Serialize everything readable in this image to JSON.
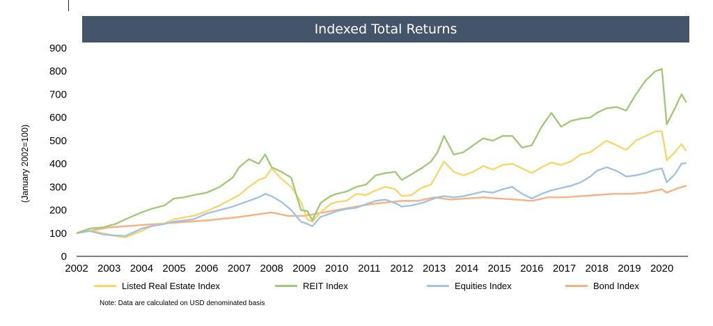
{
  "chart_data": {
    "type": "line",
    "title": "Indexed Total Returns",
    "ylabel": "(January 2002=100)",
    "xlabel": "",
    "ylim": [
      0,
      900
    ],
    "xlim": [
      2002,
      2020.8
    ],
    "y_ticks": [
      0,
      100,
      200,
      300,
      400,
      500,
      600,
      700,
      800,
      900
    ],
    "x_ticks": [
      2002,
      2003,
      2004,
      2005,
      2006,
      2007,
      2008,
      2009,
      2010,
      2011,
      2012,
      2013,
      2014,
      2015,
      2016,
      2017,
      2018,
      2019,
      2020
    ],
    "grid": false,
    "legend_position": "bottom",
    "note": "Note: Data are calculated on USD denominated basis",
    "series": [
      {
        "name": "Listed Real Estate Index",
        "color": "#f9d66c",
        "x": [
          2002,
          2002.4,
          2002.8,
          2003.2,
          2003.5,
          2004.0,
          2004.3,
          2004.7,
          2005.0,
          2005.3,
          2005.6,
          2006.0,
          2006.4,
          2006.8,
          2007.0,
          2007.3,
          2007.6,
          2007.8,
          2008.0,
          2008.3,
          2008.6,
          2008.9,
          2009.1,
          2009.25,
          2009.5,
          2009.8,
          2010.0,
          2010.3,
          2010.6,
          2010.9,
          2011.2,
          2011.5,
          2011.8,
          2012.0,
          2012.3,
          2012.6,
          2012.9,
          2013.1,
          2013.3,
          2013.6,
          2013.9,
          2014.2,
          2014.5,
          2014.8,
          2015.1,
          2015.4,
          2015.7,
          2016.0,
          2016.3,
          2016.6,
          2016.9,
          2017.2,
          2017.5,
          2017.8,
          2018.0,
          2018.3,
          2018.6,
          2018.9,
          2019.2,
          2019.5,
          2019.8,
          2020.0,
          2020.15,
          2020.4,
          2020.6,
          2020.75
        ],
        "y": [
          100,
          112,
          100,
          88,
          82,
          110,
          130,
          143,
          160,
          168,
          175,
          195,
          220,
          250,
          265,
          300,
          330,
          340,
          380,
          335,
          300,
          235,
          160,
          150,
          190,
          225,
          235,
          240,
          270,
          265,
          285,
          300,
          290,
          260,
          265,
          295,
          310,
          360,
          410,
          365,
          350,
          365,
          390,
          375,
          395,
          400,
          380,
          360,
          385,
          405,
          395,
          410,
          440,
          450,
          470,
          500,
          480,
          460,
          500,
          520,
          540,
          540,
          415,
          450,
          485,
          455
        ]
      },
      {
        "name": "REIT Index",
        "color": "#a2c97a",
        "x": [
          2002,
          2002.4,
          2002.8,
          2003.2,
          2003.5,
          2004.0,
          2004.3,
          2004.7,
          2005.0,
          2005.3,
          2005.6,
          2006.0,
          2006.4,
          2006.8,
          2007.0,
          2007.3,
          2007.6,
          2007.8,
          2008.0,
          2008.3,
          2008.6,
          2008.9,
          2009.1,
          2009.25,
          2009.5,
          2009.8,
          2010.0,
          2010.3,
          2010.6,
          2010.9,
          2011.2,
          2011.5,
          2011.8,
          2012.0,
          2012.3,
          2012.6,
          2012.9,
          2013.1,
          2013.3,
          2013.6,
          2013.9,
          2014.2,
          2014.5,
          2014.8,
          2015.1,
          2015.4,
          2015.7,
          2016.0,
          2016.3,
          2016.6,
          2016.9,
          2017.2,
          2017.5,
          2017.8,
          2018.0,
          2018.3,
          2018.6,
          2018.9,
          2019.2,
          2019.5,
          2019.8,
          2020.0,
          2020.15,
          2020.4,
          2020.6,
          2020.75
        ],
        "y": [
          100,
          120,
          125,
          140,
          160,
          190,
          205,
          220,
          250,
          255,
          265,
          275,
          300,
          340,
          385,
          420,
          400,
          440,
          385,
          365,
          340,
          200,
          195,
          155,
          230,
          260,
          270,
          280,
          300,
          310,
          350,
          360,
          365,
          330,
          355,
          380,
          410,
          450,
          520,
          440,
          450,
          480,
          510,
          500,
          520,
          520,
          470,
          480,
          560,
          620,
          560,
          585,
          595,
          600,
          620,
          640,
          645,
          630,
          700,
          760,
          800,
          810,
          570,
          640,
          700,
          665
        ]
      },
      {
        "name": "Equities Index",
        "color": "#a3c1e0",
        "x": [
          2002,
          2002.4,
          2002.8,
          2003.2,
          2003.5,
          2004.0,
          2004.3,
          2004.7,
          2005.0,
          2005.3,
          2005.6,
          2006.0,
          2006.4,
          2006.8,
          2007.0,
          2007.3,
          2007.6,
          2007.8,
          2008.0,
          2008.3,
          2008.6,
          2008.9,
          2009.1,
          2009.25,
          2009.5,
          2009.8,
          2010.0,
          2010.3,
          2010.6,
          2010.9,
          2011.2,
          2011.5,
          2011.8,
          2012.0,
          2012.3,
          2012.6,
          2012.9,
          2013.1,
          2013.3,
          2013.6,
          2013.9,
          2014.2,
          2014.5,
          2014.8,
          2015.1,
          2015.4,
          2015.7,
          2016.0,
          2016.3,
          2016.6,
          2016.9,
          2017.2,
          2017.5,
          2017.8,
          2018.0,
          2018.3,
          2018.6,
          2018.9,
          2019.2,
          2019.5,
          2019.8,
          2020.0,
          2020.15,
          2020.4,
          2020.6,
          2020.75
        ],
        "y": [
          100,
          110,
          95,
          90,
          88,
          120,
          130,
          140,
          150,
          155,
          160,
          185,
          200,
          215,
          225,
          240,
          255,
          270,
          260,
          235,
          200,
          150,
          140,
          130,
          170,
          185,
          195,
          205,
          210,
          225,
          240,
          245,
          230,
          215,
          220,
          230,
          245,
          255,
          260,
          255,
          260,
          270,
          280,
          275,
          290,
          300,
          270,
          250,
          270,
          285,
          295,
          305,
          320,
          345,
          370,
          385,
          370,
          345,
          350,
          360,
          375,
          380,
          320,
          355,
          400,
          403
        ]
      },
      {
        "name": "Bond Index",
        "color": "#f4b183",
        "x": [
          2002,
          2003,
          2004,
          2005,
          2006,
          2007,
          2008,
          2008.5,
          2009,
          2010,
          2011,
          2012,
          2012.5,
          2013,
          2013.5,
          2014,
          2014.5,
          2015,
          2015.5,
          2016,
          2016.5,
          2017,
          2017.5,
          2018,
          2018.5,
          2019,
          2019.5,
          2020,
          2020.15,
          2020.5,
          2020.75
        ],
        "y": [
          100,
          125,
          135,
          145,
          155,
          170,
          190,
          175,
          175,
          200,
          225,
          240,
          240,
          255,
          245,
          250,
          255,
          250,
          245,
          240,
          255,
          255,
          260,
          265,
          270,
          270,
          275,
          290,
          275,
          295,
          305
        ]
      }
    ]
  }
}
